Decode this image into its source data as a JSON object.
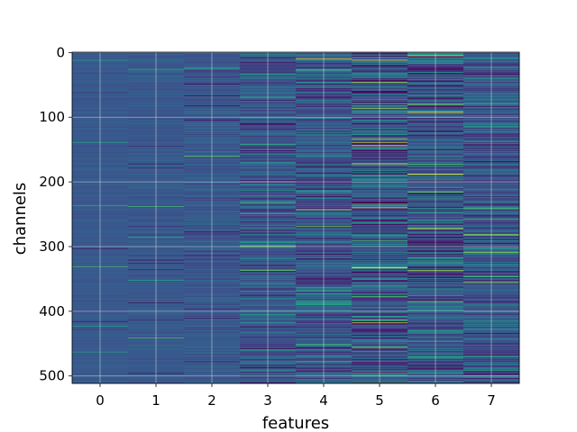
{
  "chart_data": {
    "type": "heatmap",
    "title": "",
    "xlabel": "features",
    "ylabel": "channels",
    "x_ticks": [
      0,
      1,
      2,
      3,
      4,
      5,
      6,
      7
    ],
    "y_ticks": [
      0,
      100,
      200,
      300,
      400,
      500
    ],
    "xlim": [
      -0.5,
      7.5
    ],
    "ylim": [
      511.5,
      -0.5
    ],
    "n_columns": 8,
    "n_rows": 512,
    "colormap": "viridis",
    "grid": true,
    "column_variability": [
      0.05,
      0.08,
      0.13,
      0.25,
      0.3,
      0.42,
      0.4,
      0.3
    ],
    "bright_rows": [
      {
        "column": 4,
        "row": 10
      },
      {
        "column": 6,
        "row": 5
      },
      {
        "column": 6,
        "row": 92
      },
      {
        "column": 5,
        "row": 172
      },
      {
        "column": 5,
        "row": 240
      },
      {
        "column": 6,
        "row": 272
      },
      {
        "column": 7,
        "row": 282
      },
      {
        "column": 5,
        "row": 333
      },
      {
        "column": 5,
        "row": 456
      }
    ]
  }
}
